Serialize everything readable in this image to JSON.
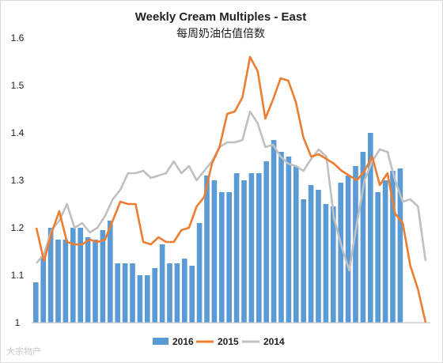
{
  "chart_data": {
    "type": "bar",
    "title": "Weekly Cream Multiples - East",
    "subtitle": "每周奶油估值倍数",
    "ylim": [
      1.0,
      1.6
    ],
    "yticks": [
      "1",
      "1.1",
      "1.2",
      "1.3",
      "1.4",
      "1.5",
      "1.6"
    ],
    "grid": false,
    "legend_position": "bottom",
    "colors": {
      "2016": "#5b9bd5",
      "2015": "#ed7d31",
      "2014": "#c0c0c0"
    },
    "series": [
      {
        "name": "2016",
        "kind": "bar",
        "values": [
          1.085,
          1.14,
          1.2,
          1.175,
          1.175,
          1.2,
          1.2,
          1.18,
          1.175,
          1.195,
          1.215,
          1.125,
          1.125,
          1.125,
          1.1,
          1.1,
          1.115,
          1.165,
          1.125,
          1.125,
          1.135,
          1.12,
          1.21,
          1.31,
          1.3,
          1.275,
          1.275,
          1.315,
          1.3,
          1.315,
          1.315,
          1.34,
          1.385,
          1.36,
          1.35,
          1.33,
          1.26,
          1.29,
          1.28,
          1.25,
          1.245,
          1.295,
          1.31,
          1.33,
          1.36,
          1.4,
          1.275,
          1.3,
          1.32,
          1.325
        ]
      },
      {
        "name": "2015",
        "kind": "line",
        "values": [
          1.2,
          1.13,
          1.19,
          1.235,
          1.17,
          1.165,
          1.165,
          1.175,
          1.17,
          1.175,
          1.215,
          1.255,
          1.25,
          1.25,
          1.17,
          1.165,
          1.18,
          1.17,
          1.17,
          1.195,
          1.2,
          1.245,
          1.265,
          1.335,
          1.37,
          1.44,
          1.445,
          1.475,
          1.56,
          1.53,
          1.43,
          1.47,
          1.515,
          1.51,
          1.465,
          1.39,
          1.35,
          1.355,
          1.345,
          1.335,
          1.32,
          1.31,
          1.3,
          1.32,
          1.35,
          1.29,
          1.315,
          1.23,
          1.21,
          1.12,
          1.07,
          1.0
        ]
      },
      {
        "name": "2014",
        "kind": "line",
        "values": [
          1.125,
          1.145,
          1.195,
          1.215,
          1.25,
          1.2,
          1.21,
          1.19,
          1.2,
          1.225,
          1.26,
          1.28,
          1.315,
          1.315,
          1.32,
          1.305,
          1.31,
          1.315,
          1.34,
          1.315,
          1.33,
          1.3,
          1.32,
          1.34,
          1.37,
          1.38,
          1.38,
          1.385,
          1.445,
          1.42,
          1.37,
          1.375,
          1.35,
          1.335,
          1.33,
          1.32,
          1.345,
          1.365,
          1.35,
          1.22,
          1.16,
          1.11,
          1.21,
          1.3,
          1.34,
          1.365,
          1.36,
          1.3,
          1.255,
          1.26,
          1.245,
          1.13
        ]
      }
    ]
  },
  "watermark": "大宗物产"
}
